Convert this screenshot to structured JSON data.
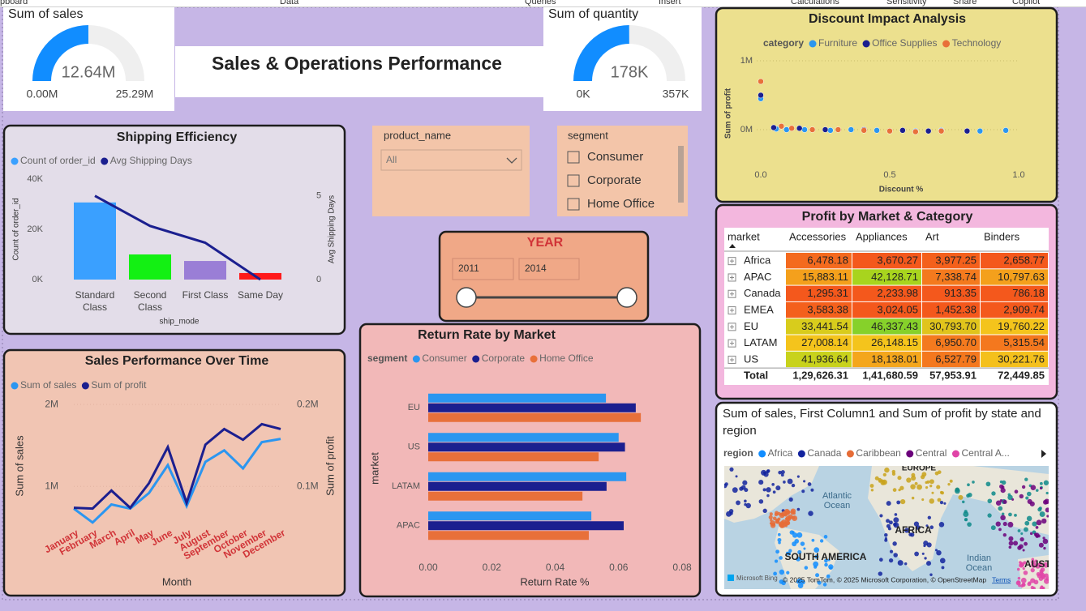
{
  "ribbon": {
    "tabs": [
      "pboard",
      "Data",
      "Queries",
      "Insert",
      "Calculations",
      "Sensitivity",
      "Share",
      "Copilot"
    ]
  },
  "page_title": "Sales & Operations Performance",
  "slicers": {
    "product_name": {
      "title": "product_name",
      "selection": "All"
    },
    "segment": {
      "title": "segment",
      "items": [
        "Consumer",
        "Corporate",
        "Home Office"
      ]
    },
    "year": {
      "title": "YEAR",
      "start": 2011,
      "end": 2014
    }
  },
  "chart_data": [
    {
      "type": "gauge",
      "title": "Sum of sales",
      "value": 12640000,
      "value_label": "12.64M",
      "color": "#118dff",
      "ylim": [
        0,
        25290000
      ],
      "yticks": [
        {
          "value": 0,
          "label": "0.00M"
        },
        {
          "value": 25290000,
          "label": "25.29M"
        }
      ]
    },
    {
      "type": "gauge",
      "title": "Sum of quantity",
      "value": 178000,
      "value_label": "178K",
      "color": "#118dff",
      "ylim": [
        0,
        357000
      ],
      "yticks": [
        {
          "value": 0,
          "label": "0K"
        },
        {
          "value": 357000,
          "label": "357K"
        }
      ]
    },
    {
      "type": "combo",
      "title": "Shipping Efficiency",
      "categories": [
        "Standard Class",
        "Second Class",
        "First Class",
        "Same Day"
      ],
      "series": [
        {
          "name": "Count of order_id",
          "color": "#3aa0ff",
          "bar_colors": [
            "#3aa0ff",
            "#13f013",
            "#9a7ed6",
            "#ff1a1a"
          ],
          "values": [
            30700,
            10000,
            7400,
            2600
          ]
        },
        {
          "name": "Avg Shipping Days",
          "color": "#1b1f8f",
          "axis": "y2",
          "values": [
            5.0,
            3.2,
            2.2,
            0.0
          ]
        }
      ],
      "x_label": "ship_mode",
      "y_label": "Count of order_id",
      "y2_label": "Avg Shipping Days",
      "ylim": [
        0,
        40000
      ],
      "yticks": [
        {
          "value": 0,
          "label": "0K"
        },
        {
          "value": 20000,
          "label": "20K"
        },
        {
          "value": 40000,
          "label": "40K"
        }
      ],
      "y2lim": [
        0,
        6
      ],
      "y2ticks": [
        0,
        5
      ]
    },
    {
      "type": "line",
      "title": "Sales Performance Over Time",
      "categories": [
        "January",
        "February",
        "March",
        "April",
        "May",
        "June",
        "July",
        "August",
        "September",
        "October",
        "November",
        "December"
      ],
      "series": [
        {
          "name": "Sum of sales",
          "color": "#2b96f0",
          "values": [
            730000,
            560000,
            780000,
            730000,
            920000,
            1260000,
            760000,
            1300000,
            1440000,
            1220000,
            1540000,
            1580000
          ]
        },
        {
          "name": "Sum of profit",
          "color": "#1b1f8f",
          "axis": "y2",
          "values": [
            74000,
            73000,
            95000,
            74000,
            104000,
            148000,
            80000,
            151000,
            170000,
            157000,
            176000,
            170000
          ]
        }
      ],
      "x_label": "Month",
      "y_label": "Sum of sales",
      "y2_label": "Sum of profit",
      "ylim": [
        400000,
        2100000
      ],
      "yticks": [
        {
          "value": 1000000,
          "label": "1M"
        },
        {
          "value": 2000000,
          "label": "2M"
        }
      ],
      "y2lim": [
        40000,
        210000
      ],
      "y2ticks": [
        {
          "value": 100000,
          "label": "0.1M"
        },
        {
          "value": 200000,
          "label": "0.2M"
        }
      ]
    },
    {
      "type": "scatter",
      "title": "Discount Impact Analysis",
      "legend_title": "category",
      "series": [
        {
          "name": "Furniture",
          "color": "#2b96f0",
          "x": [
            0.0,
            0.06,
            0.1,
            0.17,
            0.27,
            0.35,
            0.45,
            0.6,
            0.7,
            0.85,
            0.95
          ],
          "values": [
            450000,
            10000,
            0,
            0,
            -10000,
            0,
            -10000,
            -20000,
            -10000,
            -20000,
            -10000
          ]
        },
        {
          "name": "Office Supplies",
          "color": "#1b1f8f",
          "x": [
            0.0,
            0.05,
            0.15,
            0.25,
            0.4,
            0.55,
            0.65,
            0.8
          ],
          "values": [
            500000,
            30000,
            20000,
            0,
            0,
            -10000,
            -20000,
            -20000
          ]
        },
        {
          "name": "Technology",
          "color": "#e8703a",
          "x": [
            0.0,
            0.08,
            0.12,
            0.2,
            0.3,
            0.4,
            0.5,
            0.6,
            0.7
          ],
          "values": [
            700000,
            50000,
            20000,
            0,
            0,
            -10000,
            -20000,
            -30000,
            -20000
          ]
        }
      ],
      "x_label": "Discount %",
      "y_label": "Sum of profit",
      "xlim": [
        0,
        1
      ],
      "xticks": [
        {
          "value": 0,
          "label": "0.0"
        },
        0.5,
        {
          "value": 1,
          "label": "1.0"
        }
      ],
      "ylim": [
        -400000,
        1100000
      ],
      "yticks": [
        {
          "value": 0,
          "label": "0M"
        },
        {
          "value": 1000000,
          "label": "1M"
        }
      ]
    },
    {
      "type": "bar",
      "orientation": "horizontal",
      "title": "Return Rate by Market",
      "legend_title": "segment",
      "categories": [
        "EU",
        "US",
        "LATAM",
        "APAC"
      ],
      "series": [
        {
          "name": "Consumer",
          "color": "#2b96f0",
          "values": [
            0.056,
            0.06,
            0.0624,
            0.0514
          ]
        },
        {
          "name": "Corporate",
          "color": "#1b1f8f",
          "values": [
            0.0654,
            0.062,
            0.0562,
            0.0616
          ]
        },
        {
          "name": "Home Office",
          "color": "#e8703a",
          "values": [
            0.067,
            0.0537,
            0.0486,
            0.0506
          ]
        }
      ],
      "x_label": "Return Rate %",
      "y_label": "market",
      "xlim": [
        0,
        0.08
      ],
      "xticks": [
        {
          "value": 0,
          "label": "0.00"
        },
        {
          "value": 0.02,
          "label": "0.02"
        },
        {
          "value": 0.04,
          "label": "0.04"
        },
        {
          "value": 0.06,
          "label": "0.06"
        },
        {
          "value": 0.08,
          "label": "0.08"
        }
      ]
    }
  ],
  "table": {
    "title": "Profit by Market & Category",
    "columns": [
      "market",
      "Accessories",
      "Appliances",
      "Art",
      "Binders"
    ],
    "rows": [
      {
        "market": "Africa",
        "cells": [
          "6,478.18",
          "3,670.27",
          "3,977.25",
          "2,658.77"
        ]
      },
      {
        "market": "APAC",
        "cells": [
          "15,883.11",
          "42,128.71",
          "7,338.74",
          "10,797.63"
        ]
      },
      {
        "market": "Canada",
        "cells": [
          "1,295.31",
          "2,233.98",
          "913.35",
          "786.18"
        ]
      },
      {
        "market": "EMEA",
        "cells": [
          "3,583.38",
          "3,024.05",
          "1,452.38",
          "2,909.74"
        ]
      },
      {
        "market": "EU",
        "cells": [
          "33,441.54",
          "46,337.43",
          "30,793.70",
          "19,760.22"
        ]
      },
      {
        "market": "LATAM",
        "cells": [
          "27,008.14",
          "26,148.15",
          "6,950.70",
          "5,315.54"
        ]
      },
      {
        "market": "US",
        "cells": [
          "41,936.64",
          "18,138.01",
          "6,527.79",
          "30,221.76"
        ]
      }
    ],
    "cell_colors": [
      [
        "#f46a1e",
        "#f4581c",
        "#f4601c",
        "#f4581c"
      ],
      [
        "#f4a01c",
        "#a8d41e",
        "#f47a1e",
        "#f4a01c"
      ],
      [
        "#f4581c",
        "#f4581c",
        "#f4581c",
        "#f4581c"
      ],
      [
        "#f4601c",
        "#f4581c",
        "#f4581c",
        "#f4581c"
      ],
      [
        "#d8cc1c",
        "#86d12a",
        "#e0c41c",
        "#f4c41c"
      ],
      [
        "#f4c41c",
        "#f4c41c",
        "#f47a1e",
        "#f4781e"
      ],
      [
        "#c8d21c",
        "#f4a61c",
        "#f4781e",
        "#f4c01c"
      ]
    ],
    "total": {
      "label": "Total",
      "cells": [
        "1,29,626.31",
        "1,41,680.59",
        "57,953.91",
        "72,449.85"
      ]
    }
  },
  "map": {
    "title": "Sum of sales, First Column1 and Sum of profit by state and region",
    "legend_title": "region",
    "legend": [
      {
        "name": "Africa",
        "color": "#118dff"
      },
      {
        "name": "Canada",
        "color": "#12239e"
      },
      {
        "name": "Caribbean",
        "color": "#e66c37"
      },
      {
        "name": "Central",
        "color": "#6b007b"
      },
      {
        "name": "Central A...",
        "color": "#e044a7"
      }
    ],
    "labels": [
      "Atlantic Ocean",
      "AFRICA",
      "SOUTH AMERICA",
      "Indian Ocean",
      "AUST",
      "EUROPE"
    ],
    "attribution": "© 2025 TomTom, © 2025 Microsoft Corporation, © OpenStreetMap",
    "terms": "Terms",
    "brand": "Microsoft Bing"
  }
}
